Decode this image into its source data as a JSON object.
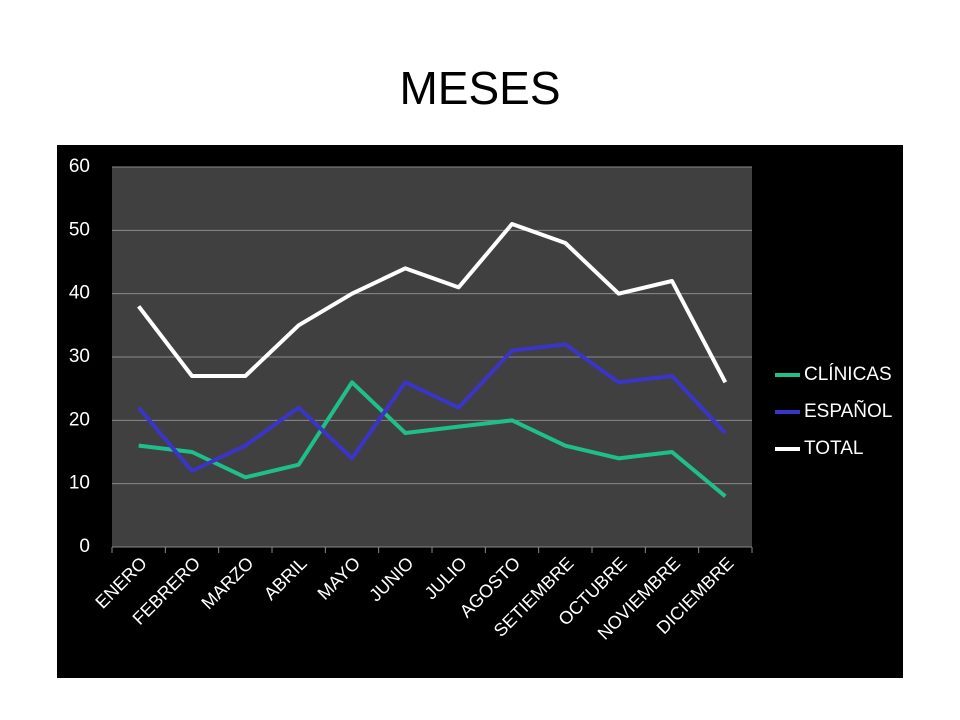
{
  "chart_data": {
    "type": "line",
    "title": "MESES",
    "categories": [
      "ENERO",
      "FEBRERO",
      "MARZO",
      "ABRIL",
      "MAYO",
      "JUNIO",
      "JULIO",
      "AGOSTO",
      "SETIEMBRE",
      "OCTUBRE",
      "NOVIEMBRE",
      "DICIEMBRE"
    ],
    "series": [
      {
        "name": "CLÍNICAS",
        "color": "#1fbf8c",
        "values": [
          16,
          15,
          11,
          13,
          26,
          18,
          19,
          20,
          16,
          14,
          15,
          8
        ]
      },
      {
        "name": "ESPAÑOL",
        "color": "#3a35c8",
        "values": [
          22,
          12,
          16,
          22,
          14,
          26,
          22,
          31,
          32,
          26,
          27,
          18
        ]
      },
      {
        "name": "TOTAL",
        "color": "#ffffff",
        "values": [
          38,
          27,
          27,
          35,
          40,
          44,
          41,
          51,
          48,
          40,
          42,
          26
        ]
      }
    ],
    "ylim": [
      0,
      60
    ],
    "yticks": [
      0,
      10,
      20,
      30,
      40,
      50,
      60
    ],
    "grid": true,
    "legend": "right"
  }
}
